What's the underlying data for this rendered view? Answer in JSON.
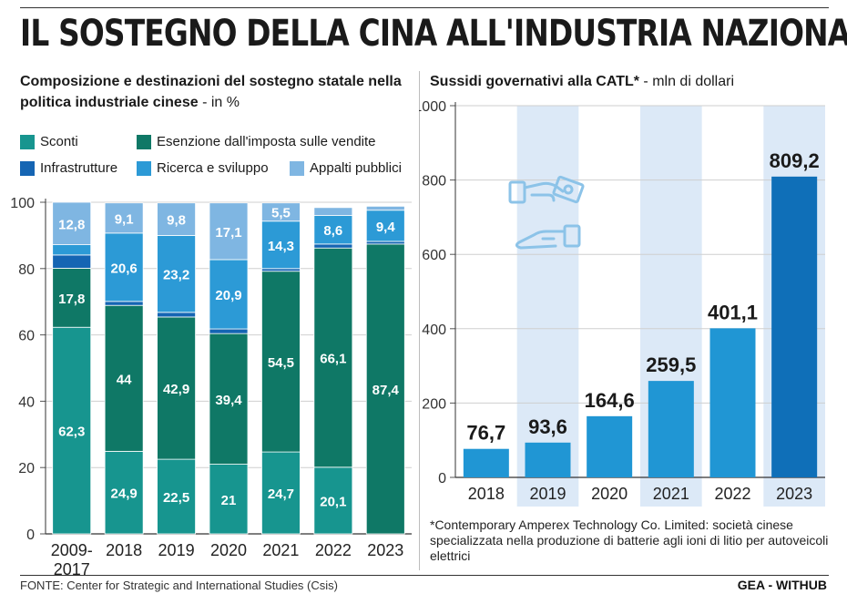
{
  "header": {
    "title": "IL SOSTEGNO DELLA CINA ALL'INDUSTRIA NAZIONALE"
  },
  "left_panel": {
    "subtitle_bold": "Composizione e destinazioni del sostegno statale nella politica industriale cinese",
    "subtitle_rest": " - in %"
  },
  "right_panel": {
    "subtitle_bold": "Sussidi governativi alla CATL*",
    "subtitle_rest": " - mln di dollari",
    "note": "*Contemporary Amperex Technology Co. Limited: società cinese specializzata nella produzione di batterie agli ioni di litio per autoveicoli elettrici"
  },
  "footer": {
    "source": "FONTE: Center for Strategic and International Studies (Csis)",
    "brand": "GEA - WITHUB"
  },
  "colors": {
    "sconti": "#17958f",
    "esenzione": "#0f7866",
    "infrastrutture": "#1565b3",
    "ricerca": "#2c9ad6",
    "appalti": "#7fb6e2",
    "catl_bar": "#2096d4",
    "catl_bar_highlight": "#0f6fb8",
    "alt_band": "#dce9f7",
    "handshake_icon": "#8cc3e8"
  },
  "chart_data": [
    {
      "type": "bar",
      "stacked": true,
      "categories": [
        [
          "2009-",
          "2017"
        ],
        "2018",
        "2019",
        "2020",
        "2021",
        "2022",
        "2023"
      ],
      "ylim": [
        0,
        100
      ],
      "yticks": [
        0,
        20,
        40,
        60,
        80,
        100
      ],
      "series": [
        {
          "name": "Sconti",
          "color_key": "sconti",
          "values": [
            62.3,
            24.9,
            22.5,
            21,
            24.7,
            20.1,
            0
          ],
          "labels": [
            "62,3",
            "24,9",
            "22,5",
            "21",
            "24,7",
            "20,1",
            ""
          ]
        },
        {
          "name": "Esenzione dall'imposta sulle vendite",
          "color_key": "esenzione",
          "values": [
            17.8,
            44,
            42.9,
            39.4,
            54.5,
            66.1,
            87.4
          ],
          "labels": [
            "17,8",
            "44",
            "42,9",
            "39,4",
            "54,5",
            "66,1",
            "87,4"
          ]
        },
        {
          "name": "Infrastrutture",
          "color_key": "infrastrutture",
          "values": [
            4,
            1.2,
            1.4,
            1.4,
            0.8,
            1.2,
            0.8
          ],
          "labels": [
            "",
            "",
            "",
            "",
            "",
            "",
            ""
          ]
        },
        {
          "name": "Ricerca e sviluppo",
          "color_key": "ricerca",
          "values": [
            3.1,
            20.6,
            23.2,
            20.9,
            14.3,
            8.6,
            9.4
          ],
          "labels": [
            "",
            "20,6",
            "23,2",
            "20,9",
            "14,3",
            "8,6",
            "9,4"
          ]
        },
        {
          "name": "Appalti pubblici",
          "color_key": "appalti",
          "values": [
            12.8,
            9.1,
            9.8,
            17.1,
            5.5,
            2.4,
            1.2
          ],
          "labels": [
            "12,8",
            "9,1",
            "9,8",
            "17,1",
            "5,5",
            "",
            ""
          ]
        }
      ],
      "legend_order": [
        [
          "Sconti",
          "Esenzione dall'imposta sulle vendite"
        ],
        [
          "Infrastrutture",
          "Ricerca e sviluppo",
          "Appalti pubblici"
        ]
      ]
    },
    {
      "type": "bar",
      "categories": [
        "2018",
        "2019",
        "2020",
        "2021",
        "2022",
        "2023"
      ],
      "values": [
        76.7,
        93.6,
        164.6,
        259.5,
        401.1,
        809.2
      ],
      "labels": [
        "76,7",
        "93,6",
        "164,6",
        "259,5",
        "401,1",
        "809,2"
      ],
      "ylim": [
        0,
        1000
      ],
      "yticks": [
        0,
        200,
        400,
        600,
        800,
        1000
      ],
      "highlight_last": true,
      "alternate_bands": [
        1,
        3,
        5
      ]
    }
  ]
}
